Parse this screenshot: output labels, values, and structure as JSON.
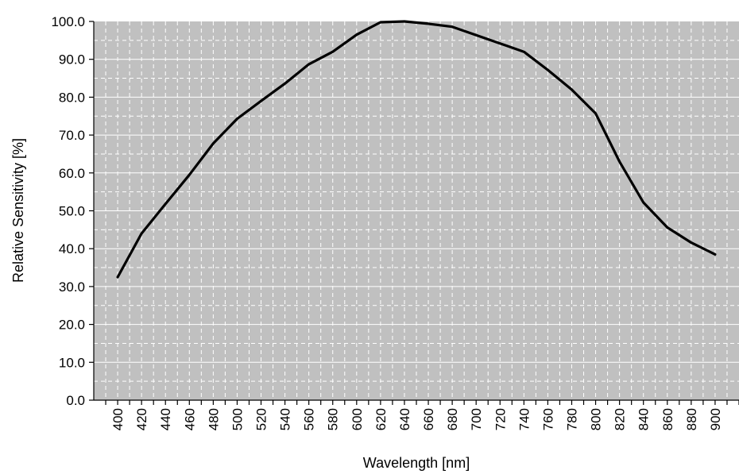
{
  "chart_data": {
    "type": "line",
    "title": "",
    "xlabel": "Wavelength [nm]",
    "ylabel": "Relative Sensitivity [%]",
    "x": [
      400,
      420,
      440,
      460,
      480,
      500,
      520,
      540,
      560,
      580,
      600,
      620,
      640,
      660,
      680,
      700,
      720,
      740,
      760,
      780,
      800,
      820,
      840,
      860,
      880,
      900
    ],
    "series": [
      {
        "name": "",
        "values": [
          32.5,
          44.0,
          51.8,
          59.5,
          67.8,
          74.3,
          79.0,
          83.6,
          88.7,
          92.0,
          96.5,
          99.8,
          100.0,
          99.4,
          98.6,
          96.4,
          94.2,
          92.0,
          87.2,
          82.0,
          75.7,
          63.0,
          52.2,
          45.6,
          41.6,
          38.5
        ]
      }
    ],
    "x_ticks": [
      "400",
      "420",
      "440",
      "460",
      "480",
      "500",
      "520",
      "540",
      "560",
      "580",
      "600",
      "620",
      "640",
      "660",
      "680",
      "700",
      "720",
      "740",
      "760",
      "780",
      "800",
      "820",
      "840",
      "860",
      "880",
      "900"
    ],
    "y_ticks": [
      "0.0",
      "10.0",
      "20.0",
      "30.0",
      "40.0",
      "50.0",
      "60.0",
      "70.0",
      "80.0",
      "90.0",
      "100.0"
    ],
    "ylim": [
      0,
      100
    ],
    "xlim": [
      380,
      920
    ],
    "grid": true,
    "colors": {
      "plot_background": "#c0c0c0",
      "line": "#000000",
      "grid": "#ffffff"
    }
  }
}
